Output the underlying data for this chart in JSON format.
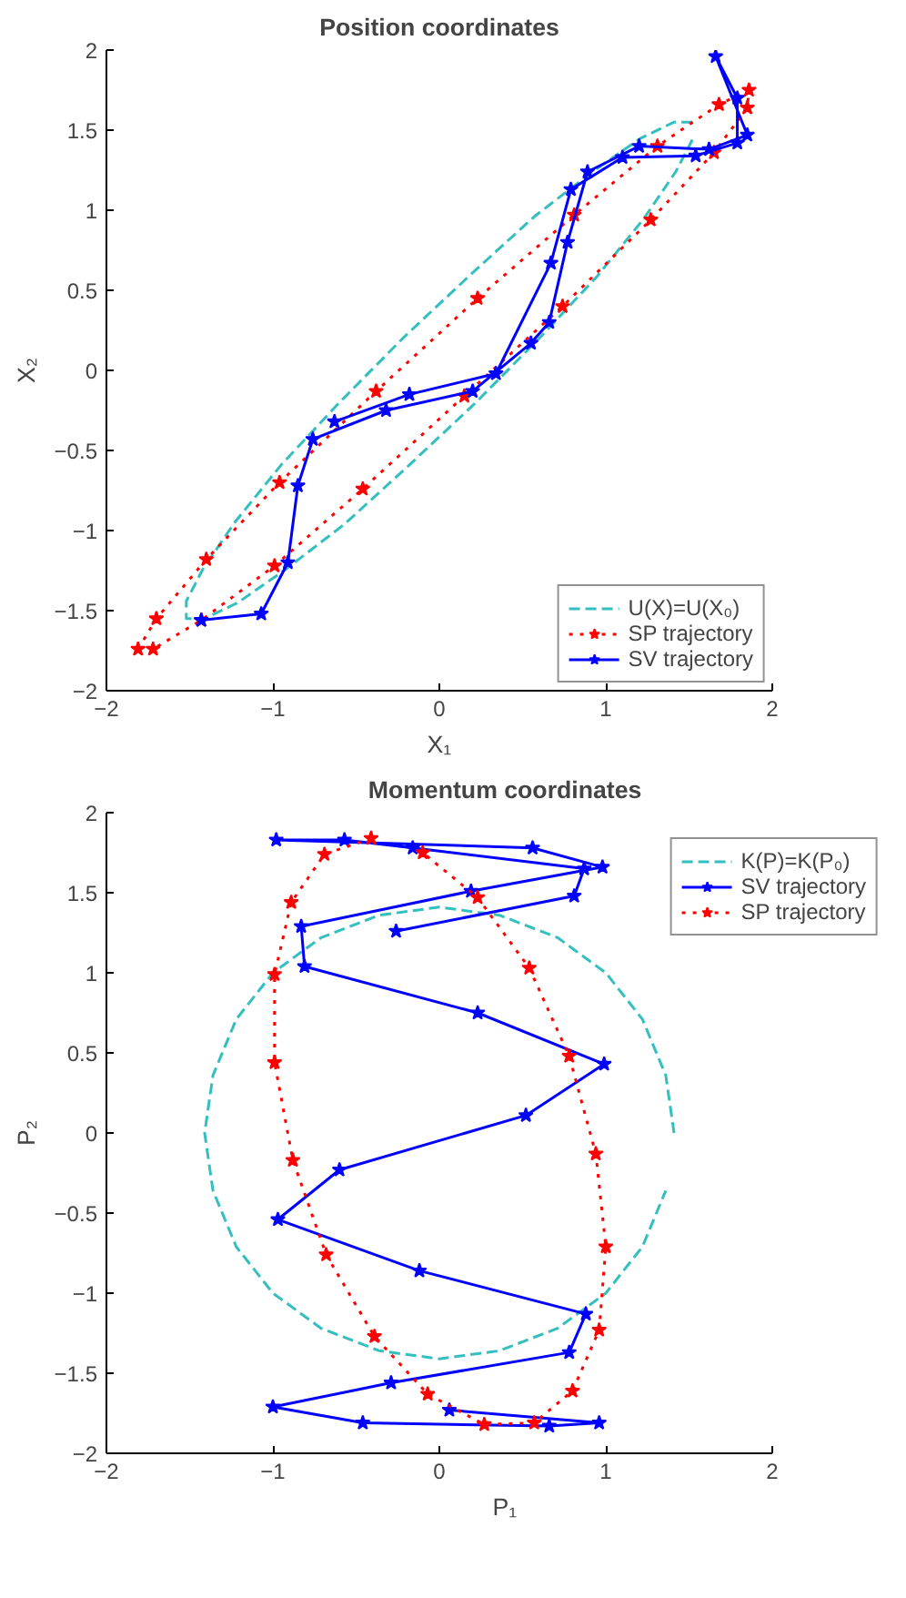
{
  "chart_data": [
    {
      "type": "line",
      "title": "Position coordinates",
      "xlabel": "X₁",
      "ylabel": "X₂",
      "xlim": [
        -2,
        2
      ],
      "ylim": [
        -2,
        2
      ],
      "xticks": [
        -2,
        -1,
        0,
        1,
        2
      ],
      "yticks": [
        -2,
        -1.5,
        -1,
        -0.5,
        0,
        0.5,
        1,
        1.5,
        2
      ],
      "grid": false,
      "legend": "bottom right",
      "series": [
        {
          "name": "U(X)=U(X₀)",
          "type": "line",
          "color": "#33bfbf",
          "marker": "none",
          "line_style": "dashed",
          "x": [
            1.52,
            1.41,
            1.21,
            0.92,
            0.57,
            0.19,
            -0.21,
            -0.6,
            -0.95,
            -1.23,
            -1.42,
            -1.52,
            -1.52,
            -1.41,
            -1.21,
            -0.92,
            -0.57,
            -0.19,
            0.21,
            0.6,
            0.95,
            1.23,
            1.42,
            1.52
          ],
          "values": [
            1.55,
            1.55,
            1.45,
            1.24,
            0.96,
            0.6,
            0.21,
            -0.2,
            -0.59,
            -0.95,
            -1.24,
            -1.44,
            -1.55,
            -1.55,
            -1.45,
            -1.24,
            -0.96,
            -0.6,
            -0.21,
            0.2,
            0.59,
            0.95,
            1.24,
            1.44
          ]
        },
        {
          "name": "SP trajectory",
          "type": "line",
          "color": "#ff0000",
          "marker": "star",
          "line_style": "dotted",
          "x": [
            -1.81,
            -1.7,
            -1.4,
            -0.96,
            -0.38,
            0.23,
            0.81,
            1.31,
            1.68,
            1.86,
            1.85,
            1.65,
            1.27,
            0.74,
            0.15,
            -0.46,
            -0.99,
            -1.43,
            -1.72
          ],
          "values": [
            -1.74,
            -1.55,
            -1.18,
            -0.7,
            -0.13,
            0.45,
            0.97,
            1.4,
            1.66,
            1.75,
            1.64,
            1.36,
            0.94,
            0.4,
            -0.16,
            -0.74,
            -1.22,
            -1.56,
            -1.74
          ]
        },
        {
          "name": "SV trajectory",
          "type": "line",
          "color": "#0000ff",
          "marker": "star",
          "line_style": "solid",
          "x": [
            -1.43,
            -1.07,
            -0.91,
            -0.85,
            -0.76,
            -0.32,
            0.2,
            0.55,
            0.66,
            0.77,
            0.89,
            1.2,
            1.62,
            1.85,
            1.66,
            1.79,
            1.79,
            1.54,
            1.1,
            0.79,
            0.67,
            0.34,
            -0.18,
            -0.63
          ],
          "values": [
            -1.56,
            -1.52,
            -1.2,
            -0.72,
            -0.43,
            -0.25,
            -0.13,
            0.17,
            0.3,
            0.8,
            1.24,
            1.4,
            1.38,
            1.47,
            1.96,
            1.7,
            1.42,
            1.34,
            1.33,
            1.13,
            0.67,
            -0.02,
            -0.15,
            -0.32
          ]
        }
      ]
    },
    {
      "type": "line",
      "title": "Momentum coordinates",
      "xlabel": "P₁",
      "ylabel": "P₂",
      "xlim": [
        -2,
        2
      ],
      "ylim": [
        -2,
        2
      ],
      "xticks": [
        -2,
        -1,
        0,
        1,
        2
      ],
      "yticks": [
        -2,
        -1.5,
        -1,
        -0.5,
        0,
        0.5,
        1,
        1.5,
        2
      ],
      "grid": false,
      "legend": "right",
      "series": [
        {
          "name": "K(P)=K(P₀)",
          "type": "line",
          "color": "#33bfbf",
          "marker": "none",
          "line_style": "dashed",
          "x": [
            1.41,
            1.36,
            1.22,
            1.0,
            0.71,
            0.36,
            0,
            -0.36,
            -0.71,
            -1.0,
            -1.22,
            -1.36,
            -1.41,
            -1.36,
            -1.22,
            -1.0,
            -0.71,
            -0.36,
            0,
            0.36,
            0.71,
            1.0,
            1.22,
            1.36
          ],
          "values": [
            0,
            0.36,
            0.71,
            1.0,
            1.22,
            1.36,
            1.41,
            1.36,
            1.22,
            1.0,
            0.71,
            0.36,
            0,
            -0.36,
            -0.71,
            -1.0,
            -1.22,
            -1.36,
            -1.41,
            -1.36,
            -1.22,
            -1.0,
            -0.71,
            -0.36
          ]
        },
        {
          "name": "SV trajectory",
          "type": "line",
          "color": "#0000ff",
          "marker": "star",
          "line_style": "solid",
          "x": [
            -0.26,
            0.81,
            0.87,
            -0.16,
            -0.57,
            -0.98,
            0.56,
            0.98,
            0.19,
            -0.83,
            -0.81,
            0.23,
            0.99,
            0.52,
            -0.6,
            -0.97,
            -0.12,
            0.88,
            0.78,
            -0.29,
            -1.0,
            -0.46,
            0.66,
            0.96,
            0.06
          ],
          "values": [
            1.26,
            1.48,
            1.65,
            1.78,
            1.83,
            1.83,
            1.78,
            1.66,
            1.51,
            1.29,
            1.04,
            0.75,
            0.43,
            0.11,
            -0.23,
            -0.54,
            -0.86,
            -1.13,
            -1.37,
            -1.56,
            -1.71,
            -1.81,
            -1.83,
            -1.81,
            -1.73
          ]
        },
        {
          "name": "SP trajectory",
          "type": "line",
          "color": "#ff0000",
          "marker": "star",
          "line_style": "dotted",
          "x": [
            -0.41,
            -0.69,
            -0.89,
            -0.99,
            -0.99,
            -0.88,
            -0.68,
            -0.39,
            -0.07,
            0.27,
            0.57,
            0.8,
            0.96,
            1.0,
            0.94,
            0.78,
            0.54,
            0.23,
            -0.1
          ],
          "values": [
            1.84,
            1.74,
            1.44,
            0.99,
            0.44,
            -0.17,
            -0.76,
            -1.27,
            -1.63,
            -1.82,
            -1.81,
            -1.61,
            -1.23,
            -0.71,
            -0.13,
            0.48,
            1.03,
            1.47,
            1.75
          ]
        }
      ]
    }
  ]
}
